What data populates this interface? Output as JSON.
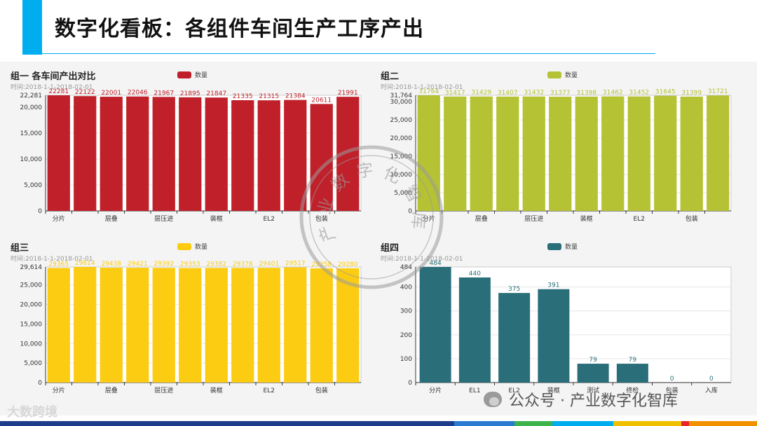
{
  "page": {
    "title": "数字化看板：各组件车间生产工序产出",
    "watermark": "产业数字化智库",
    "logo_text": "大数跨境",
    "wechat_text": "公众号 · 产业数字化智库"
  },
  "colors": {
    "accent": "#00aeef",
    "footer": [
      "#1e3c8c",
      "#2a7bd0",
      "#3cb44b",
      "#00aeef",
      "#f0c000",
      "#e8262a",
      "#f39200"
    ]
  },
  "chart_data": [
    {
      "type": "bar",
      "title": "组一 各车间产出对比",
      "subtitle": "时间:2018-1-1-2018-02-01",
      "legend": "数量",
      "color": "#c0202a",
      "categories": [
        "分片",
        "",
        "层叠",
        "",
        "层压进",
        "",
        "装框",
        "",
        "EL2",
        "",
        "包装",
        ""
      ],
      "values": [
        22281,
        22122,
        22001,
        22046,
        21967,
        21895,
        21847,
        21335,
        21315,
        21384,
        20611,
        21991
      ],
      "ylim": [
        0,
        22281
      ],
      "yticks": [
        0,
        5000,
        10000,
        15000,
        20000
      ],
      "ymax_label": "22,281",
      "ymax_value": 22281,
      "grid": true
    },
    {
      "type": "bar",
      "title": "组二",
      "subtitle": "时间:2018-1-1-2018-02-01",
      "legend": "数量",
      "color": "#b5c234",
      "categories": [
        "分片",
        "",
        "层叠",
        "",
        "层压进",
        "",
        "装框",
        "",
        "EL2",
        "",
        "包装",
        ""
      ],
      "values": [
        31764,
        31417,
        31429,
        31407,
        31432,
        31377,
        31398,
        31462,
        31452,
        31645,
        31399,
        31721
      ],
      "ylim": [
        0,
        31764
      ],
      "yticks": [
        0,
        5000,
        10000,
        15000,
        20000,
        25000,
        30000
      ],
      "ymax_label": "31,764",
      "ymax_value": 31764,
      "grid": true
    },
    {
      "type": "bar",
      "title": "组三",
      "subtitle": "时间:2018-1-1-2018-02-01",
      "legend": "数量",
      "color": "#fccc12",
      "categories": [
        "分片",
        "",
        "层叠",
        "",
        "层压进",
        "",
        "装框",
        "",
        "EL2",
        "",
        "包装",
        ""
      ],
      "values": [
        29365,
        29614,
        29438,
        29421,
        29392,
        29353,
        29382,
        29378,
        29401,
        29517,
        29258,
        29280
      ],
      "ylim": [
        0,
        29614
      ],
      "yticks": [
        0,
        5000,
        10000,
        15000,
        20000,
        25000
      ],
      "ymax_label": "29,614",
      "ymax_value": 29614,
      "grid": true
    },
    {
      "type": "bar",
      "title": "组四",
      "subtitle": "时间:2018-1-1-2018-02-01",
      "legend": "数量",
      "color": "#2a6e7a",
      "categories": [
        "分片",
        "EL1",
        "EL2",
        "装框",
        "测试",
        "终检",
        "包装",
        "入库"
      ],
      "values": [
        484,
        440,
        375,
        391,
        79,
        79,
        0,
        0
      ],
      "ylim": [
        0,
        484
      ],
      "yticks": [
        0,
        100,
        200,
        300,
        400
      ],
      "ymax_label": "484",
      "ymax_value": 484,
      "grid": true
    }
  ]
}
